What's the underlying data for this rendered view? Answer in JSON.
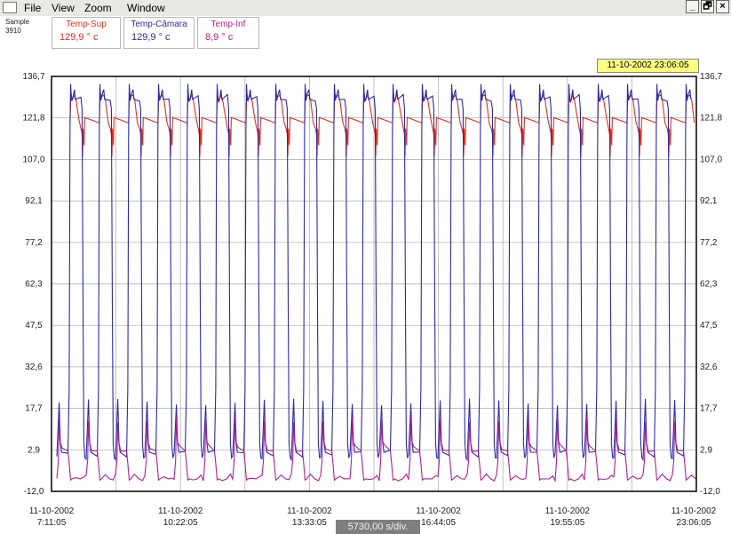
{
  "menu": {
    "file": "File",
    "view": "View",
    "zoom": "Zoom",
    "window": "Window"
  },
  "window_buttons": {
    "minimize": "_",
    "restore": "🗗",
    "close": "×"
  },
  "sample": {
    "label": "Sample",
    "value": "3910"
  },
  "legend": [
    {
      "name": "Temp-Sup",
      "value": "129,9 ° c",
      "color": "#e03020"
    },
    {
      "name": "Temp-Câmara",
      "value": "129,9 ° c",
      "color": "#2a2aa8"
    },
    {
      "name": "Temp-Inf",
      "value": "8,9 ° c",
      "color": "#b02090"
    }
  ],
  "cursor_time": "11-10-2002 23:06:05",
  "scale_label": "5730,00 s/div.",
  "colors": {
    "frame": "#000000",
    "grid": "#a8a8a8",
    "background": "#ffffff"
  },
  "chart_data": {
    "type": "line",
    "grid": true,
    "ylim": [
      -12.0,
      136.7
    ],
    "y_ticks": [
      "136,7",
      "121,8",
      "107,0",
      "92,1",
      "77,2",
      "62,3",
      "47,5",
      "32,6",
      "17,7",
      "2,9",
      "-12,0"
    ],
    "x_labels": [
      {
        "date": "11-10-2002",
        "time": "7:11:05"
      },
      {
        "date": "11-10-2002",
        "time": "10:22:05"
      },
      {
        "date": "11-10-2002",
        "time": "13:33:05"
      },
      {
        "date": "11-10-2002",
        "time": "16:44:05"
      },
      {
        "date": "11-10-2002",
        "time": "19:55:05"
      },
      {
        "date": "11-10-2002",
        "time": "23:06:05"
      }
    ],
    "cycles": 22,
    "series": [
      {
        "name": "Temp-Sup",
        "color": "#e03020",
        "high": 129.9,
        "low": 108.0
      },
      {
        "name": "Temp-Câmara",
        "color": "#2a2aa8",
        "high": 129.9,
        "low": -4.0
      },
      {
        "name": "Temp-Inf",
        "color": "#b02090",
        "high": 15.0,
        "low": -8.0
      }
    ]
  }
}
